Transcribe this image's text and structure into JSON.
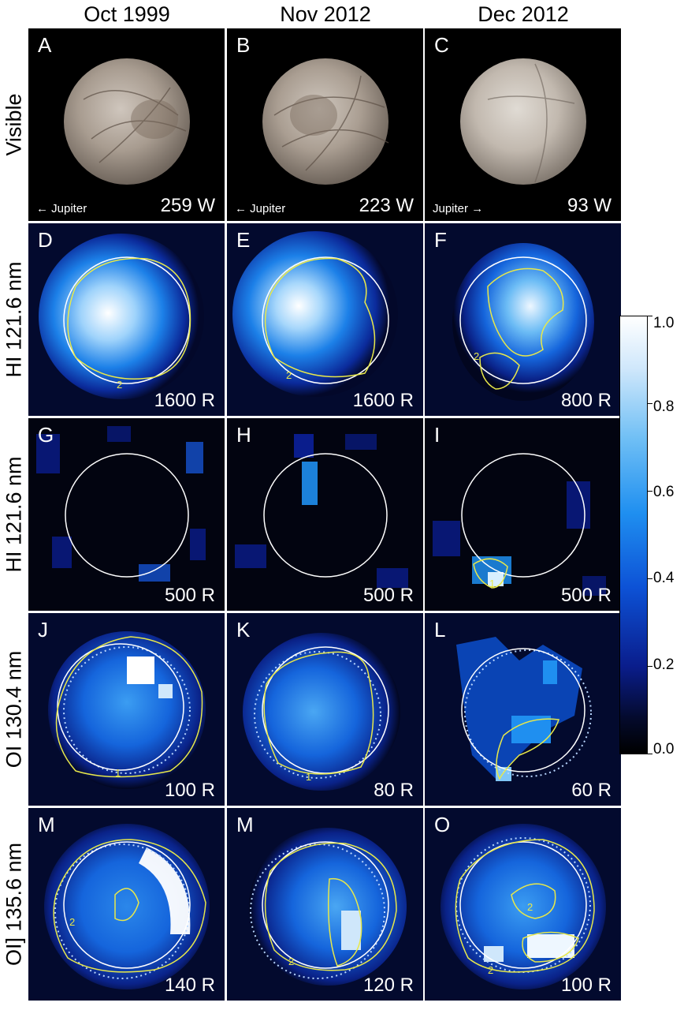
{
  "columns": [
    "Oct 1999",
    "Nov 2012",
    "Dec 2012"
  ],
  "rows": [
    "Visible",
    "HI 121.6 nm",
    "HI 121.6 nm",
    "OI 130.4 nm",
    "OI] 135.6 nm"
  ],
  "panels": [
    {
      "letter": "A",
      "value": "259 W",
      "jupiter": "← Jupiter"
    },
    {
      "letter": "B",
      "value": "223 W",
      "jupiter": "← Jupiter"
    },
    {
      "letter": "C",
      "value": "93 W",
      "jupiter": "Jupiter →"
    },
    {
      "letter": "D",
      "value": "1600 R",
      "contour_labels": [
        "2"
      ]
    },
    {
      "letter": "E",
      "value": "1600 R",
      "contour_labels": [
        "2"
      ]
    },
    {
      "letter": "F",
      "value": "800 R",
      "contour_labels": [
        "2"
      ]
    },
    {
      "letter": "G",
      "value": "500 R"
    },
    {
      "letter": "H",
      "value": "500 R"
    },
    {
      "letter": "I",
      "value": "500 R",
      "contour_labels": [
        "1"
      ]
    },
    {
      "letter": "J",
      "value": "100 R",
      "contour_labels": [
        "1"
      ]
    },
    {
      "letter": "K",
      "value": "80 R",
      "contour_labels": [
        "1"
      ]
    },
    {
      "letter": "L",
      "value": "60 R"
    },
    {
      "letter": "M",
      "value": "140 R",
      "contour_labels": [
        "2"
      ]
    },
    {
      "letter": "M",
      "value": "120 R",
      "contour_labels": [
        "2"
      ]
    },
    {
      "letter": "O",
      "value": "100 R",
      "contour_labels": [
        "2",
        "2"
      ]
    }
  ],
  "colorbar": {
    "ticks": [
      "1.0",
      "0.8",
      "0.6",
      "0.4",
      "0.2",
      "0.0"
    ],
    "min": 0.0,
    "max": 1.0,
    "colors": [
      "#000000",
      "#0a1d8c",
      "#1f8ff0",
      "#ffffff"
    ]
  },
  "overlay_colors": {
    "contour": "#e8e84a",
    "disk": "#ffffff",
    "disk_dotted": "#b8d6ff"
  }
}
